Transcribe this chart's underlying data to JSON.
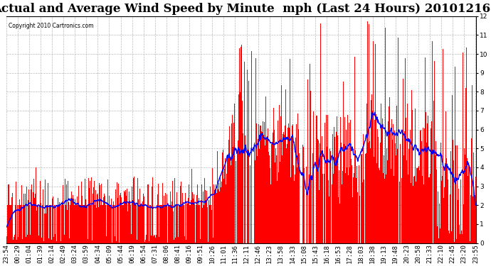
{
  "title": "Actual and Average Wind Speed by Minute  mph (Last 24 Hours) 20101216",
  "copyright_text": "Copyright 2010 Cartronics.com",
  "ylim": [
    0.0,
    12.0
  ],
  "yticks": [
    0.0,
    1.0,
    2.0,
    3.0,
    4.0,
    5.0,
    6.0,
    7.0,
    8.0,
    9.0,
    10.0,
    11.0,
    12.0
  ],
  "bar_color": "#FF0000",
  "line_color": "#0000FF",
  "background_color": "#FFFFFF",
  "grid_color": "#BBBBBB",
  "title_fontsize": 12,
  "tick_fontsize": 6.5,
  "num_points": 1440,
  "tick_labels": [
    "23:54",
    "00:29",
    "01:04",
    "01:39",
    "02:14",
    "02:49",
    "03:24",
    "03:59",
    "04:34",
    "05:09",
    "05:44",
    "06:19",
    "06:54",
    "07:31",
    "08:06",
    "08:41",
    "09:16",
    "09:51",
    "10:26",
    "11:01",
    "11:36",
    "12:11",
    "12:46",
    "13:23",
    "13:58",
    "14:33",
    "15:08",
    "15:43",
    "16:18",
    "16:53",
    "17:28",
    "18:03",
    "18:38",
    "19:13",
    "19:48",
    "20:23",
    "20:58",
    "21:33",
    "22:10",
    "22:45",
    "23:20",
    "23:55"
  ]
}
